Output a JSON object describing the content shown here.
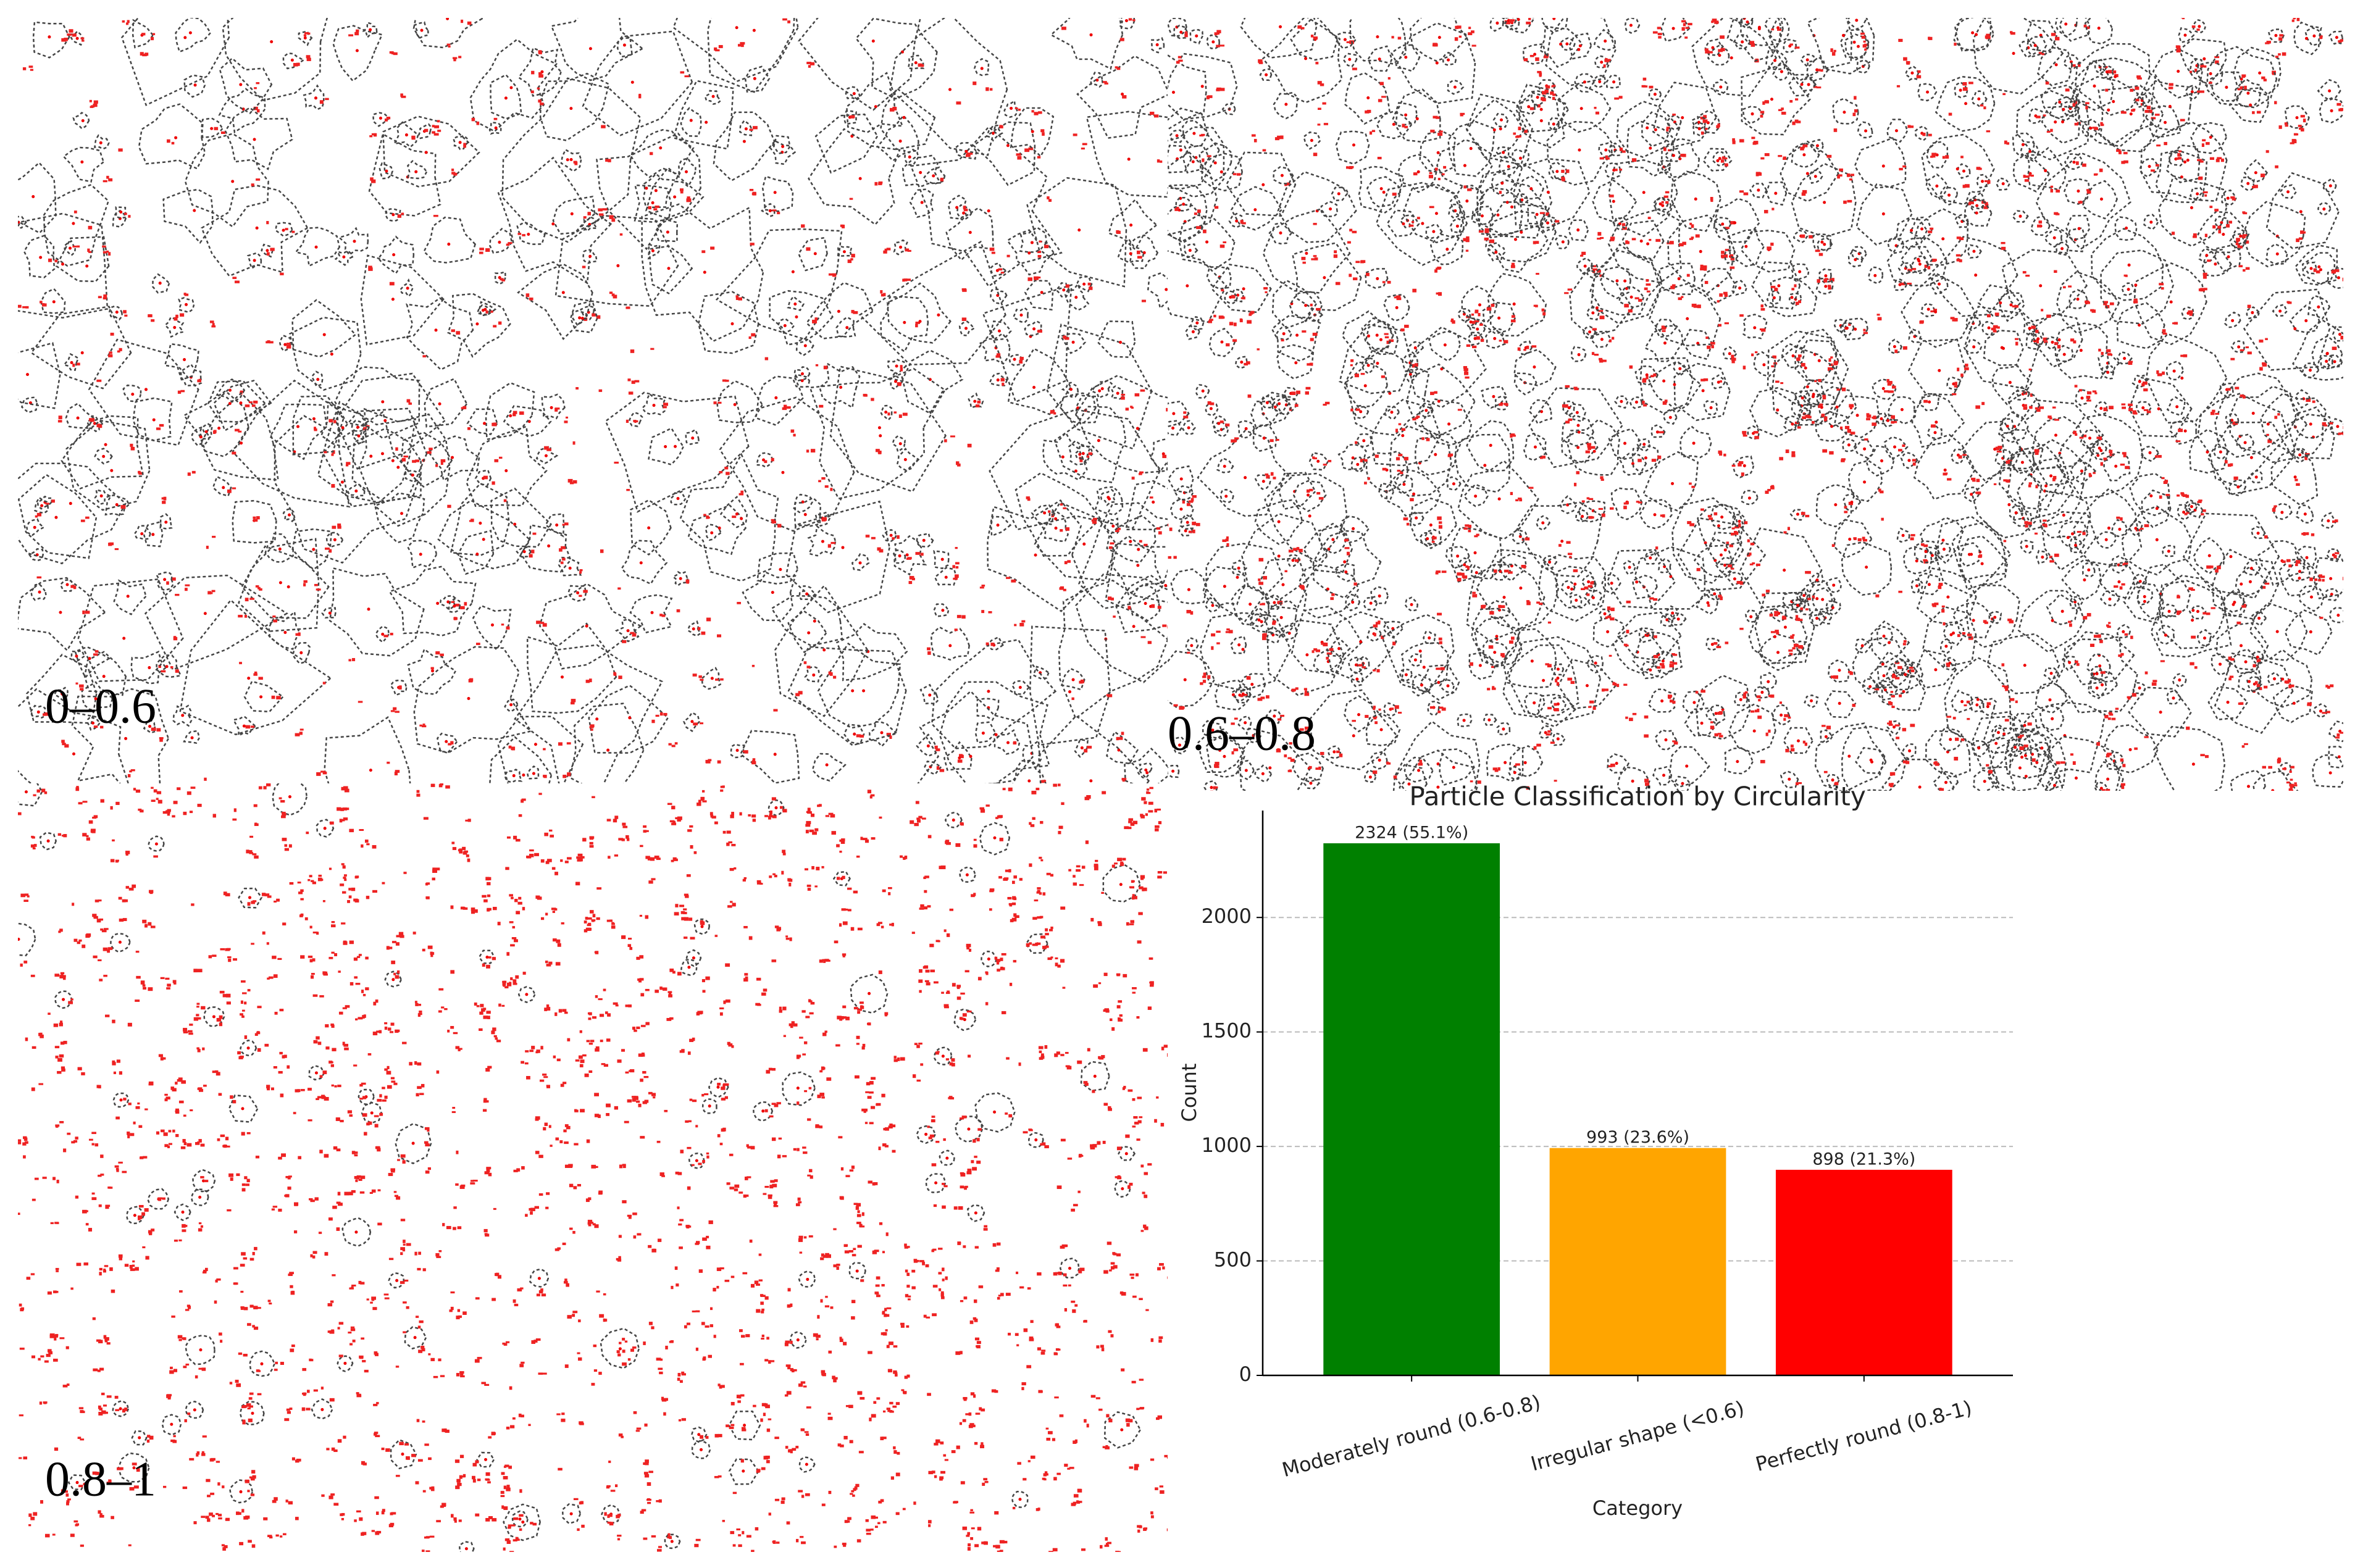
{
  "panels": [
    {
      "label": "0–0.6"
    },
    {
      "label": "0.6–0.8"
    },
    {
      "label": "0.8–1"
    }
  ],
  "chart_data": {
    "type": "bar",
    "title": "Particle Classification by Circularity",
    "x_label": "Category",
    "y_label": "Count",
    "categories": [
      "Moderately round (0.6-0.8)",
      "Irregular shape (<0.6)",
      "Perfectly round (0.8-1)"
    ],
    "values": [
      2324,
      993,
      898
    ],
    "value_labels": [
      "2324 (55.1%)",
      "993 (23.6%)",
      "898 (21.3%)"
    ],
    "colors": [
      "#008000",
      "#ffa500",
      "#ff0000"
    ],
    "ylim": [
      0,
      2467
    ],
    "yticks": [
      0,
      500,
      1000,
      1500,
      2000
    ],
    "grid": true
  }
}
